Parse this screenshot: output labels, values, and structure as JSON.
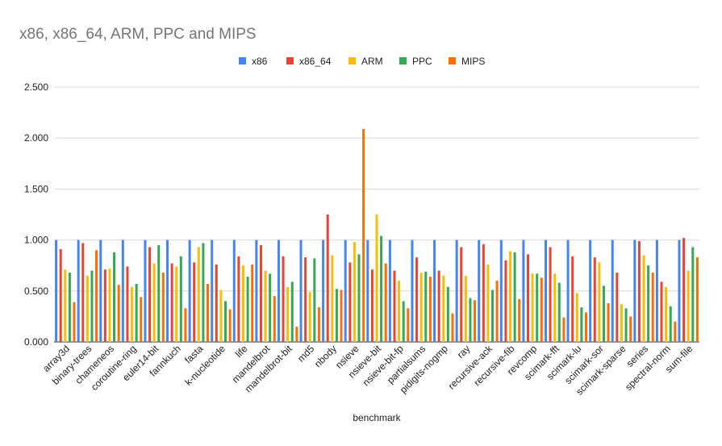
{
  "chart_data": {
    "type": "bar",
    "title": "x86, x86_64, ARM, PPC and MIPS",
    "xlabel": "benchmark",
    "ylabel": "",
    "ylim": [
      0,
      2.5
    ],
    "yticks": [
      "0.000",
      "0.500",
      "1.000",
      "1.500",
      "2.000",
      "2.500"
    ],
    "grid": true,
    "legend_position": "top",
    "categories": [
      "array3d",
      "binary-trees",
      "chameneos",
      "coroutine-ring",
      "euler14-bit",
      "fannkuch",
      "fasta",
      "k-nucleotide",
      "life",
      "mandelbrot",
      "mandelbrot-bit",
      "md5",
      "nbody",
      "nsieve",
      "nsieve-bit",
      "nsieve-bit-fp",
      "partialsums",
      "pidigits-nogmp",
      "ray",
      "recursive-ack",
      "recursive-fib",
      "revcomp",
      "scimark-fft",
      "scimark-lu",
      "scimark-sor",
      "scimark-sparse",
      "series",
      "spectral-norm",
      "sum-file"
    ],
    "series": [
      {
        "name": "x86",
        "color": "#4285f4",
        "values": [
          1,
          1,
          1,
          1,
          1,
          1,
          1,
          1,
          1,
          1,
          1,
          1,
          1,
          1,
          1,
          1,
          1,
          1,
          1,
          1,
          1,
          1,
          1,
          1,
          1,
          1,
          1,
          1,
          1
        ]
      },
      {
        "name": "x86_64",
        "color": "#ea4335",
        "values": [
          0.91,
          0.97,
          0.71,
          0.74,
          0.93,
          0.77,
          0.78,
          0.76,
          0.84,
          0.95,
          0.84,
          0.83,
          1.25,
          0.78,
          0.71,
          0.7,
          0.83,
          0.7,
          0.93,
          0.96,
          0.8,
          0.86,
          0.93,
          0.84,
          0.83,
          0.68,
          0.99,
          0.59,
          1.02
        ]
      },
      {
        "name": "ARM",
        "color": "#fbbc04",
        "values": [
          0.71,
          0.65,
          0.72,
          0.54,
          0.77,
          0.74,
          0.93,
          0.51,
          0.75,
          0.7,
          0.54,
          0.49,
          0.85,
          0.98,
          1.25,
          0.6,
          0.68,
          0.65,
          0.65,
          0.76,
          0.89,
          0.67,
          0.67,
          0.48,
          0.78,
          0.37,
          0.85,
          0.54,
          0.7
        ]
      },
      {
        "name": "PPC",
        "color": "#34a853",
        "values": [
          0.68,
          0.7,
          0.88,
          0.57,
          0.95,
          0.84,
          0.97,
          0.4,
          0.64,
          0.67,
          0.59,
          0.82,
          0.52,
          0.86,
          1.04,
          0.4,
          0.69,
          0.54,
          0.43,
          0.51,
          0.88,
          0.67,
          0.58,
          0.34,
          0.55,
          0.33,
          0.75,
          0.35,
          0.93
        ]
      },
      {
        "name": "MIPS",
        "color": "#ff6d01",
        "values": [
          0.39,
          0.9,
          0.56,
          0.44,
          0.68,
          0.33,
          0.57,
          0.32,
          0.76,
          0.45,
          0.15,
          0.34,
          0.51,
          2.09,
          0.77,
          0.33,
          0.64,
          0.28,
          0.41,
          0.6,
          0.42,
          0.63,
          0.24,
          0.29,
          0.38,
          0.25,
          0.68,
          0.2,
          0.83
        ]
      }
    ]
  }
}
